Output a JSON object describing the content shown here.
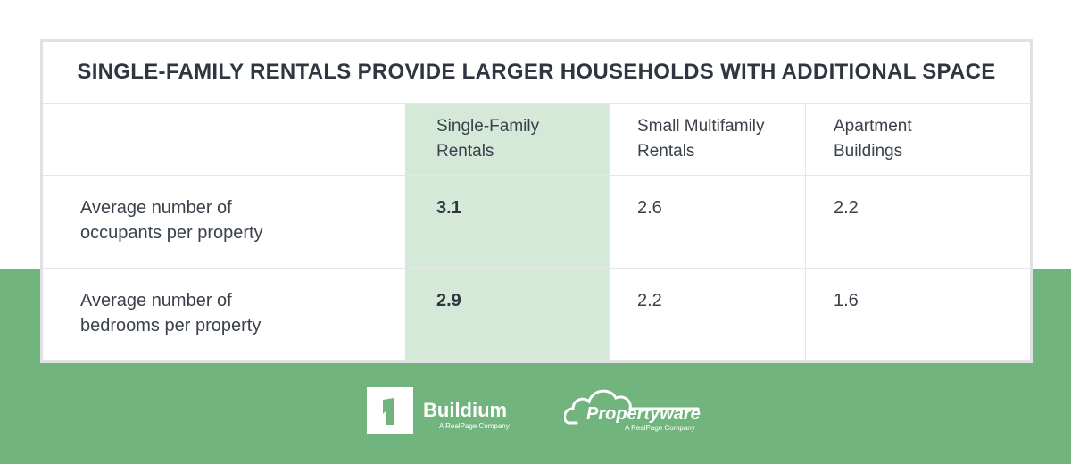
{
  "title": "SINGLE-FAMILY RENTALS PROVIDE LARGER HOUSEHOLDS WITH ADDITIONAL SPACE",
  "columns": [
    {
      "line1": "Single-Family",
      "line2": "Rentals"
    },
    {
      "line1": "Small Multifamily",
      "line2": "Rentals"
    },
    {
      "line1": "Apartment",
      "line2": "Buildings"
    }
  ],
  "rows": [
    {
      "label_line1": "Average number of",
      "label_line2": "occupants per property",
      "values": [
        "3.1",
        "2.6",
        "2.2"
      ]
    },
    {
      "label_line1": "Average number of",
      "label_line2": "bedrooms per property",
      "values": [
        "2.9",
        "2.2",
        "1.6"
      ]
    }
  ],
  "logos": {
    "buildium": {
      "name": "Buildium",
      "sub": "A RealPage Company",
      "icon": "buildium-logo-icon"
    },
    "propertyware": {
      "name": "Propertyware",
      "sub": "A RealPage Company",
      "icon": "cloud-logo-icon"
    }
  },
  "colors": {
    "green_band": "#72b47d",
    "highlight_column": "#d5e9d8",
    "text": "#2f3640",
    "border": "#dfe1e2"
  }
}
